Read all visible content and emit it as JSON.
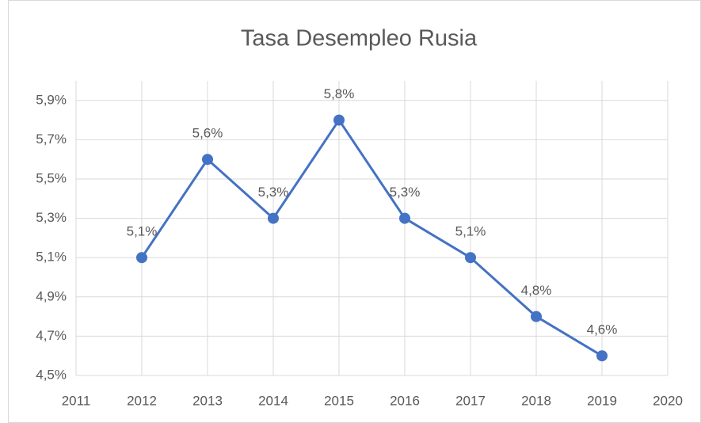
{
  "chart_data": {
    "type": "line",
    "title": "Tasa Desempleo Rusia",
    "x": [
      2012,
      2013,
      2014,
      2015,
      2016,
      2017,
      2018,
      2019
    ],
    "series": [
      {
        "name": "Tasa Desempleo Rusia",
        "color": "#4472c4",
        "values": [
          5.1,
          5.6,
          5.3,
          5.8,
          5.3,
          5.1,
          4.8,
          4.6
        ],
        "value_labels": [
          "5,1%",
          "5,6%",
          "5,3%",
          "5,8%",
          "5,3%",
          "5,1%",
          "4,8%",
          "4,6%"
        ]
      }
    ],
    "xlim": [
      2011,
      2020
    ],
    "xticks": [
      2011,
      2012,
      2013,
      2014,
      2015,
      2016,
      2017,
      2018,
      2019,
      2020
    ],
    "ylim": [
      4.5,
      6.0
    ],
    "yticks": [
      {
        "value": 4.5,
        "label": "4,5%"
      },
      {
        "value": 4.7,
        "label": "4,7%"
      },
      {
        "value": 4.9,
        "label": "4,9%"
      },
      {
        "value": 5.1,
        "label": "5,1%"
      },
      {
        "value": 5.3,
        "label": "5,3%"
      },
      {
        "value": 5.5,
        "label": "5,5%"
      },
      {
        "value": 5.7,
        "label": "5,7%"
      },
      {
        "value": 5.9,
        "label": "5,9%"
      }
    ],
    "grid": true
  }
}
